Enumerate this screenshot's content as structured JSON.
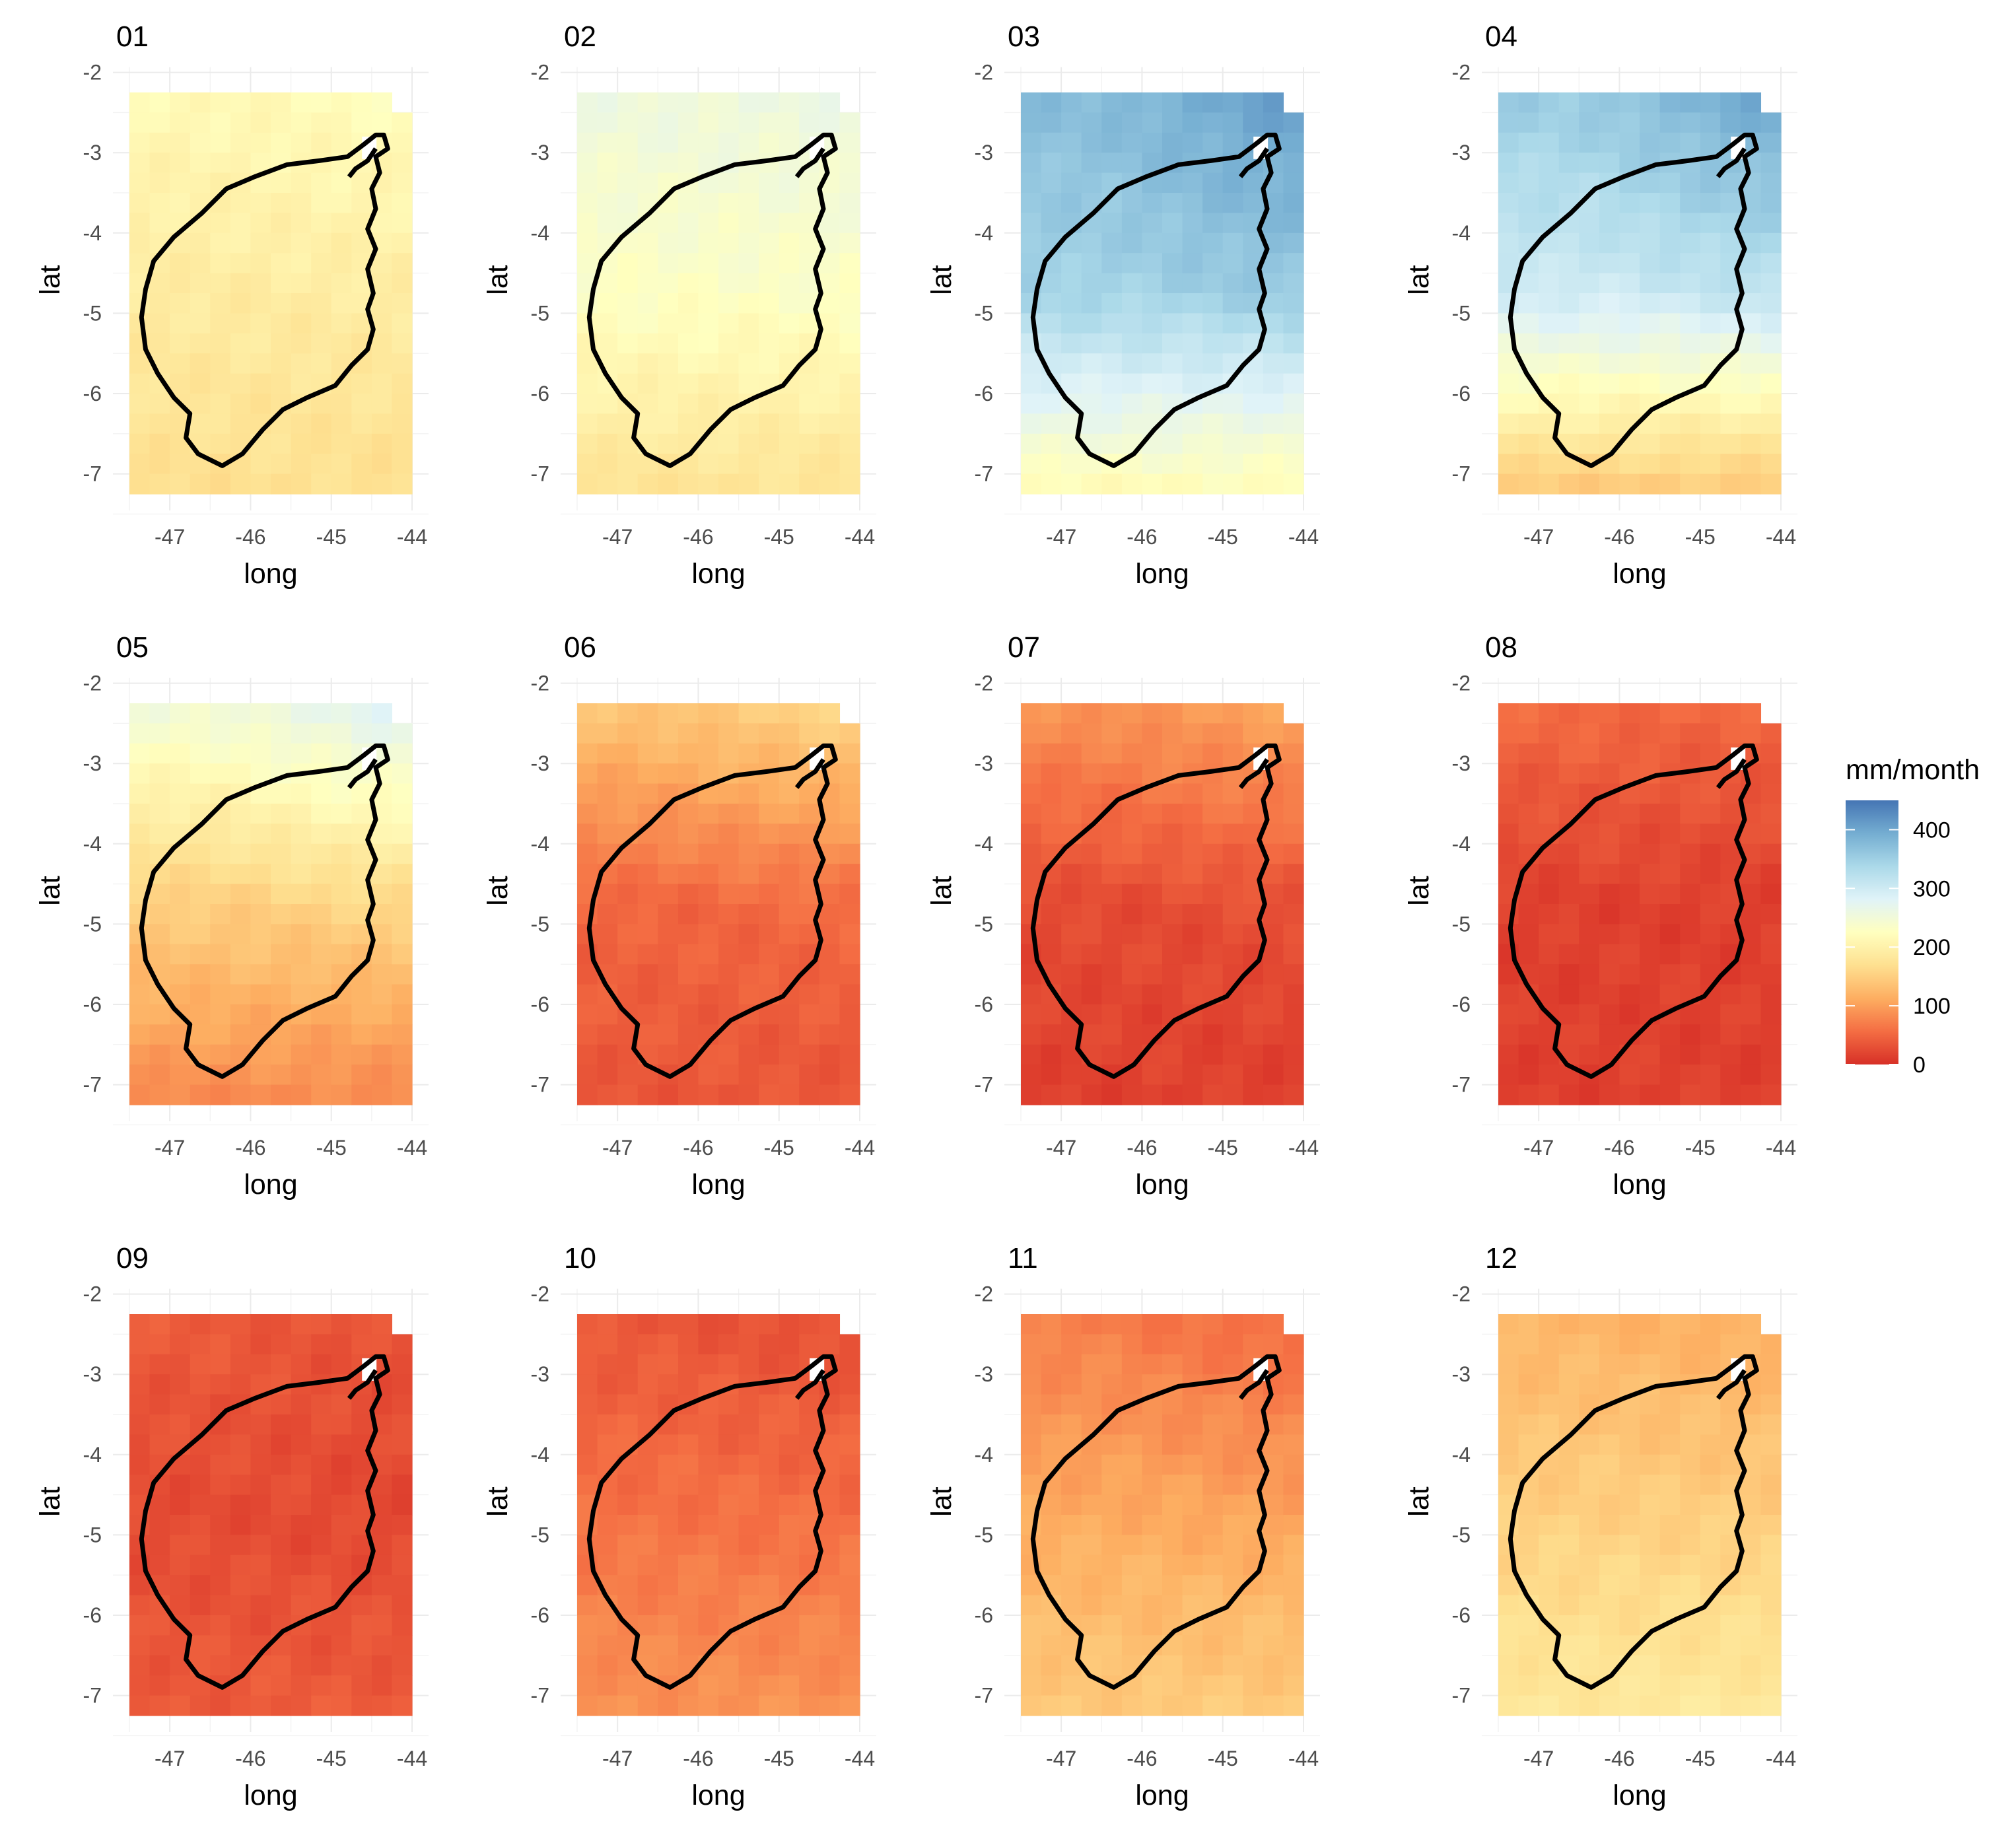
{
  "chart_data": {
    "type": "heatmap",
    "facets": [
      "01",
      "02",
      "03",
      "04",
      "05",
      "06",
      "07",
      "08",
      "09",
      "10",
      "11",
      "12"
    ],
    "xlabel": "long",
    "ylabel": "lat",
    "xticks": [
      -47,
      -46,
      -45,
      -44
    ],
    "yticks": [
      -2,
      -3,
      -4,
      -5,
      -6,
      -7
    ],
    "xlim": [
      -47.5,
      -44.0
    ],
    "ylim": [
      -7.25,
      -2.25
    ],
    "legend": {
      "title": "mm/month",
      "breaks": [
        0,
        100,
        200,
        300,
        400
      ],
      "range": [
        0,
        450
      ],
      "position": "right",
      "palette": [
        "#d73027",
        "#f46d43",
        "#fdae61",
        "#fee090",
        "#ffffbf",
        "#e0f3f8",
        "#abd9e9",
        "#74add1",
        "#4575b4"
      ]
    },
    "monthly_fields": {
      "01": {
        "north": 215,
        "center": 190,
        "south": 170,
        "northeast": 225
      },
      "02": {
        "north": 255,
        "center": 230,
        "south": 175,
        "northeast": 260
      },
      "03": {
        "north": 375,
        "center": 345,
        "south": 215,
        "northeast": 420
      },
      "04": {
        "north": 355,
        "center": 300,
        "south": 140,
        "northeast": 415
      },
      "05": {
        "north": 250,
        "center": 150,
        "south": 80,
        "northeast": 290
      },
      "06": {
        "north": 140,
        "center": 50,
        "south": 35,
        "northeast": 165
      },
      "07": {
        "north": 90,
        "center": 25,
        "south": 15,
        "northeast": 110
      },
      "08": {
        "north": 55,
        "center": 15,
        "south": 15,
        "northeast": 50
      },
      "09": {
        "north": 40,
        "center": 25,
        "south": 40,
        "northeast": 30
      },
      "10": {
        "north": 35,
        "center": 60,
        "south": 90,
        "northeast": 25
      },
      "11": {
        "north": 70,
        "center": 110,
        "south": 145,
        "northeast": 45
      },
      "12": {
        "north": 120,
        "center": 150,
        "south": 185,
        "northeast": 110
      }
    },
    "outline": "basin boundary (black line)",
    "grid": true
  }
}
